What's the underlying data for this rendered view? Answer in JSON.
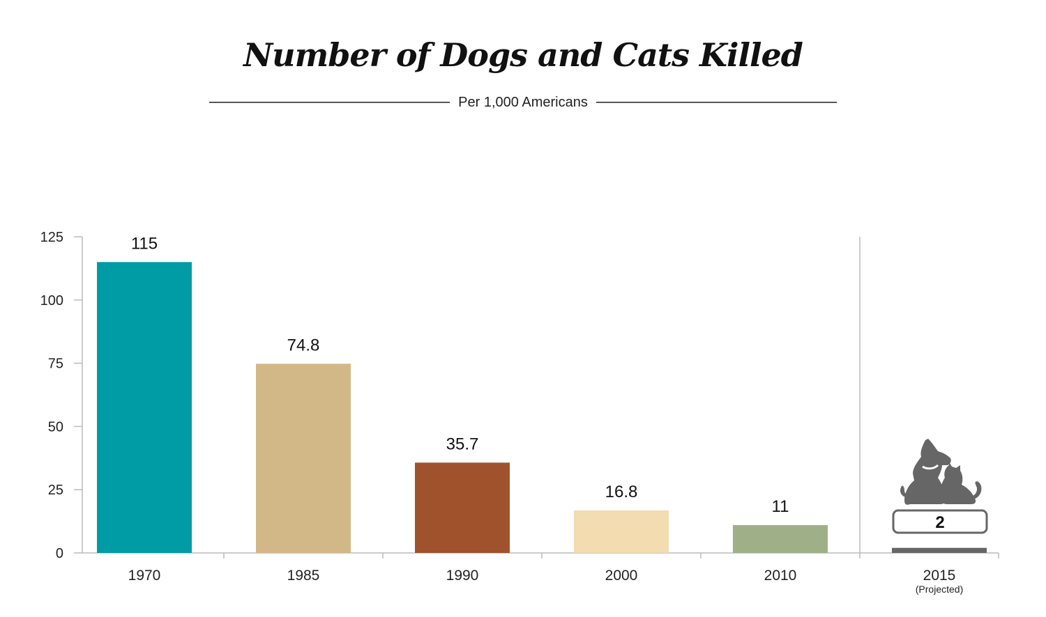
{
  "title": "Number of Dogs and Cats Killed",
  "subtitle": "Per 1,000 Americans",
  "colors": {
    "axis": "#bbbbbb",
    "tick_text": "#222222",
    "projected": "#666666"
  },
  "projected": {
    "category": "2015",
    "note": "(Projected)",
    "value": 2,
    "label": "2",
    "icon": "dog-and-cat-icon"
  },
  "chart_data": {
    "type": "bar",
    "title": "Number of Dogs and Cats Killed",
    "subtitle": "Per 1,000 Americans",
    "categories": [
      "1970",
      "1985",
      "1990",
      "2000",
      "2010",
      "2015"
    ],
    "values": [
      115,
      74.8,
      35.7,
      16.8,
      11,
      2
    ],
    "data_labels": [
      "115",
      "74.8",
      "35.7",
      "16.8",
      "11",
      "2"
    ],
    "bar_colors": [
      "#009ca6",
      "#d3b887",
      "#a0522d",
      "#f2dcb0",
      "#9fb088",
      "#666666"
    ],
    "yticks": [
      "0",
      "25",
      "50",
      "75",
      "100",
      "125"
    ],
    "ylim": [
      0,
      125
    ],
    "grid": false,
    "legend": "none"
  }
}
